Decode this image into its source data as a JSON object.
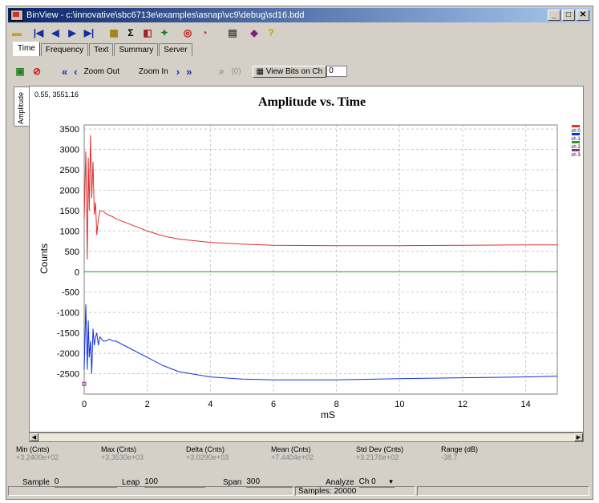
{
  "window": {
    "title": "BinView - c:\\innovative\\sbc6713e\\examples\\asnap\\vc9\\debug\\sd16.bdd",
    "min_label": "_",
    "max_label": "□",
    "close_label": "✕"
  },
  "tabs": [
    "Time",
    "Frequency",
    "Text",
    "Summary",
    "Server"
  ],
  "toolbar2": {
    "zoom_out": "Zoom Out",
    "zoom_in": "Zoom In",
    "zoom_count": "(0)",
    "view_bits": "View Bits on Ch",
    "channel_value": "0"
  },
  "side_tab": "Amplitude",
  "cursor_readout": "0.55, 3551.16",
  "chart_data": {
    "type": "line",
    "title": "Amplitude vs. Time",
    "xlabel": "mS",
    "ylabel": "Counts",
    "xlim": [
      0,
      15
    ],
    "ylim": [
      -3000,
      3600
    ],
    "xticks": [
      0,
      2,
      4,
      6,
      8,
      10,
      12,
      14
    ],
    "yticks": [
      3500,
      3000,
      2500,
      2000,
      1500,
      1000,
      500,
      0,
      -500,
      -1000,
      -1500,
      -2000,
      -2500
    ],
    "grid": true,
    "legend_position": "right",
    "series": [
      {
        "name": "ch 0",
        "color": "#e03030",
        "x": [
          0.0,
          0.05,
          0.1,
          0.13,
          0.16,
          0.2,
          0.24,
          0.28,
          0.32,
          0.36,
          0.4,
          0.45,
          0.5,
          0.6,
          0.7,
          0.8,
          0.9,
          1.0,
          1.5,
          2.0,
          2.5,
          3.0,
          4.0,
          5.0,
          6.0,
          8.0,
          10.0,
          12.0,
          14.0,
          15.0
        ],
        "y": [
          1300,
          2950,
          300,
          2800,
          1500,
          3350,
          1800,
          2700,
          1400,
          1700,
          900,
          1300,
          1500,
          1480,
          1420,
          1380,
          1350,
          1300,
          1150,
          1000,
          880,
          800,
          720,
          680,
          650,
          640,
          640,
          650,
          660,
          660
        ]
      },
      {
        "name": "ch 1",
        "color": "#1030e0",
        "x": [
          0.0,
          0.05,
          0.1,
          0.13,
          0.16,
          0.2,
          0.24,
          0.28,
          0.32,
          0.36,
          0.4,
          0.45,
          0.5,
          0.6,
          0.7,
          0.8,
          0.9,
          1.0,
          1.5,
          2.0,
          2.5,
          3.0,
          4.0,
          5.0,
          6.0,
          8.0,
          10.0,
          12.0,
          14.0,
          15.0
        ],
        "y": [
          -2400,
          -800,
          -2400,
          -1200,
          -2100,
          -1700,
          -2500,
          -1400,
          -1800,
          -1600,
          -1500,
          -1800,
          -1600,
          -1700,
          -1700,
          -1650,
          -1700,
          -1700,
          -1900,
          -2100,
          -2300,
          -2450,
          -2580,
          -2630,
          -2650,
          -2650,
          -2620,
          -2600,
          -2580,
          -2560
        ]
      },
      {
        "name": "ch 2",
        "color": "#2a9a2a",
        "x": [
          0,
          15
        ],
        "y": [
          0,
          0
        ]
      },
      {
        "name": "ch 3",
        "color": "#a020a0",
        "x": [
          0.0
        ],
        "y": [
          -2750
        ]
      }
    ]
  },
  "stats": [
    {
      "label": "Min (Cnts)",
      "value": "+3.2400e+02"
    },
    {
      "label": "Max (Cnts)",
      "value": "+3.3530e+03"
    },
    {
      "label": "Delta (Cnts)",
      "value": "+3.0290e+03"
    },
    {
      "label": "Mean (Cnts)",
      "value": "+7.4404e+02"
    },
    {
      "label": "Std Dev (Cnts)",
      "value": "+3.2176e+02"
    },
    {
      "label": "Range (dB)",
      "value": "-38.7"
    }
  ],
  "controls": {
    "sample_label": "Sample",
    "sample_value": "0",
    "leap_label": "Leap",
    "leap_value": "100",
    "span_label": "Span",
    "span_value": "300",
    "analyze_label": "Analyze",
    "analyze_value": "Ch 0"
  },
  "status": {
    "samples": "Samples: 20000"
  }
}
